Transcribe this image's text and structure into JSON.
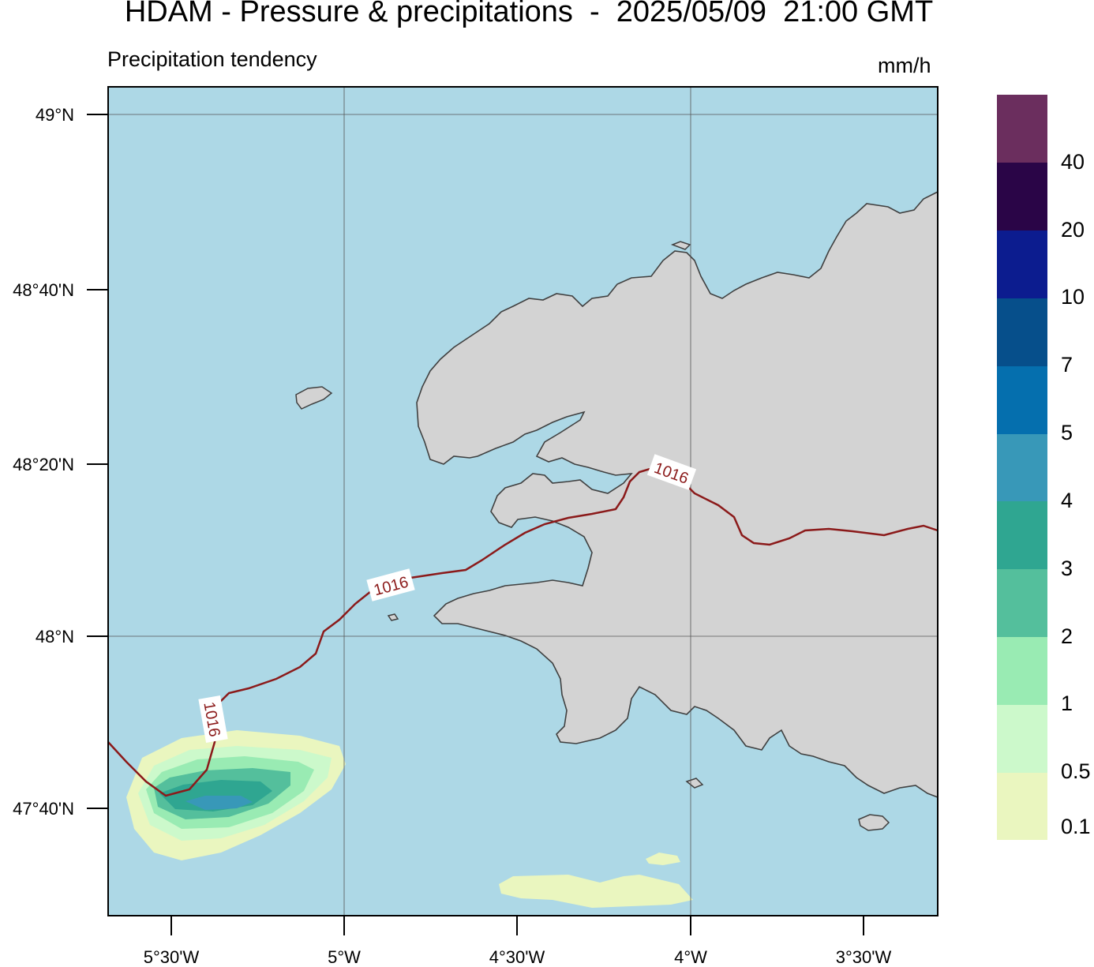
{
  "header": {
    "title": "HDAM - Pressure & precipitations  -  2025/05/09  21:00 GMT",
    "subtitle": "Precipitation tendency",
    "units": "mm/h"
  },
  "axes": {
    "lat_labels": [
      "49°N",
      "48°40'N",
      "48°20'N",
      "48°N",
      "47°40'N"
    ],
    "lon_labels": [
      "5°30'W",
      "5°W",
      "4°30'W",
      "4°W",
      "3°30'W"
    ]
  },
  "isobars": [
    {
      "value": "1016",
      "labels": [
        "1016",
        "1016",
        "1016"
      ],
      "color": "#8b1a1a"
    }
  ],
  "colorbar": {
    "colors": [
      "#eaf6bf",
      "#ccf9cb",
      "#99ebb3",
      "#54bf9c",
      "#2fa691",
      "#3898b8",
      "#056fae",
      "#064f8b",
      "#0c1c8f",
      "#2a0547",
      "#6b2e5e"
    ],
    "labels": [
      "0.1",
      "0.5",
      "1",
      "2",
      "3",
      "4",
      "5",
      "7",
      "10",
      "20",
      "40"
    ]
  },
  "colors": {
    "sea": "#add8e6",
    "land": "#d3d3d3",
    "coast": "#404040",
    "isobar": "#8b1a1a"
  }
}
